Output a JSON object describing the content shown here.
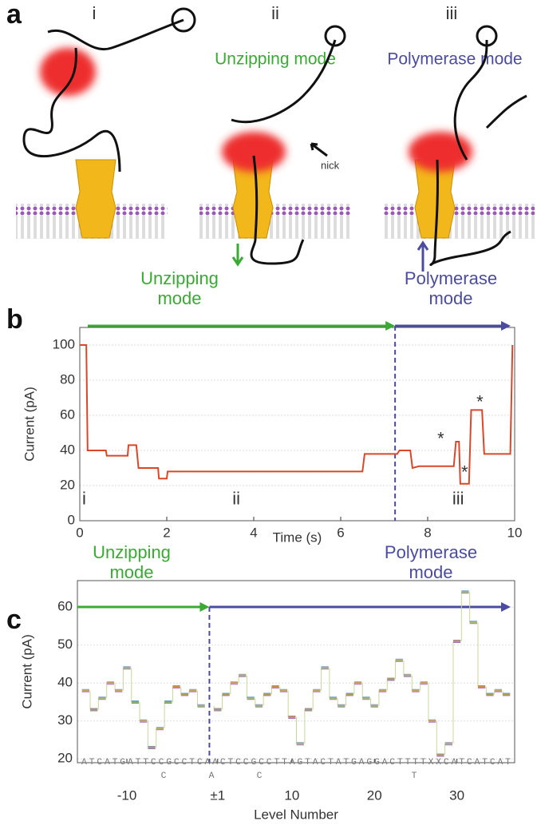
{
  "panel_labels": [
    "a",
    "b",
    "c"
  ],
  "panel_a": {
    "steps": [
      "i",
      "ii",
      "iii"
    ],
    "unzipping_title": "Unzipping mode",
    "polymerase_title": "Polymerase mode",
    "nick": "nick"
  },
  "chart_data": [
    {
      "type": "line",
      "x_label": "Time (s)",
      "y_label": "Current (pA)",
      "x": [
        0,
        0.15,
        0.18,
        0.6,
        0.62,
        1.1,
        1.12,
        1.3,
        1.35,
        1.8,
        1.82,
        2.0,
        2.02,
        6.5,
        6.55,
        7.3,
        7.35,
        7.6,
        7.65,
        7.8,
        7.85,
        8.6,
        8.65,
        8.72,
        8.75,
        8.95,
        9.0,
        9.25,
        9.3,
        9.9,
        9.95
      ],
      "values": [
        100,
        100,
        40,
        40,
        37,
        37,
        43,
        43,
        30,
        30,
        24,
        24,
        28,
        28,
        38,
        38,
        40,
        40,
        30,
        31,
        31,
        31,
        45,
        45,
        21,
        21,
        63,
        63,
        38,
        38,
        100
      ],
      "color": "#d9472b",
      "xlim": [
        0,
        10
      ],
      "xticks": [
        0,
        2,
        4,
        6,
        8,
        10
      ],
      "ylim": [
        0,
        110
      ],
      "yticks": [
        0,
        20,
        40,
        60,
        80,
        100
      ],
      "grid": true,
      "divider_x": 7.25,
      "left_label": [
        "Unzipping",
        "mode"
      ],
      "right_label": [
        "Polymerase",
        "mode"
      ],
      "left_color": "#3aaa35",
      "right_color": "#4b4ba0",
      "annotations": [
        "i",
        "ii",
        "iii",
        "*",
        "*",
        "*"
      ]
    },
    {
      "type": "step",
      "x_label": "Level Number",
      "y_label": "Current (pA)",
      "x": [
        -15,
        -14,
        -13,
        -12,
        -11,
        -10,
        -9,
        -8,
        -7,
        -6,
        -5,
        -4,
        -3,
        -2,
        -1,
        1,
        2,
        3,
        4,
        5,
        6,
        7,
        8,
        9,
        10,
        11,
        12,
        13,
        14,
        15,
        16,
        17,
        18,
        19,
        20,
        21,
        22,
        23,
        24,
        25,
        26,
        27,
        28,
        29,
        30,
        31,
        32,
        33,
        34,
        35,
        36
      ],
      "values": [
        38,
        33,
        36,
        40,
        38,
        44,
        35,
        30,
        23,
        28,
        35,
        39,
        37,
        38,
        34,
        33,
        37,
        40,
        42,
        36,
        34,
        37,
        39,
        38,
        31,
        24,
        33,
        38,
        44,
        36,
        34,
        37,
        40,
        36,
        34,
        38,
        41,
        46,
        42,
        38,
        40,
        30,
        21,
        24,
        51,
        64,
        56,
        39,
        37,
        38,
        37
      ],
      "color": "#7aa7c9",
      "xlim": [
        -16,
        37
      ],
      "xticks": [
        -10,
        {
          "value": 1,
          "label": "±1"
        },
        10,
        20,
        30
      ],
      "ylim": [
        19,
        67
      ],
      "yticks": [
        20,
        30,
        40,
        50,
        60
      ],
      "grid": true,
      "divider_x": 0,
      "left_label": [
        "Unzipping",
        "mode"
      ],
      "right_label": [
        "Polymerase",
        "mode"
      ],
      "left_color": "#3aaa35",
      "right_color": "#4b4ba0",
      "sequence": "ATCATGATTCCGCCTCAACTCCGCCTTAGTACTATGAGGACTTTTXXCATCATCAT",
      "variants": [
        "C",
        "A",
        "C",
        "T"
      ]
    }
  ]
}
